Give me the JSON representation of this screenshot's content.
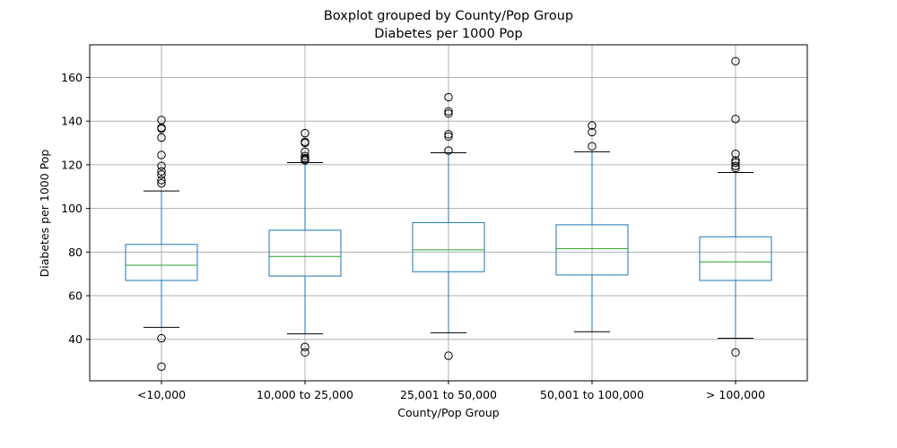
{
  "chart_data": {
    "type": "boxplot",
    "title": "Boxplot grouped by County/Pop Group",
    "subtitle": "Diabetes per 1000 Pop",
    "xlabel": "County/Pop Group",
    "ylabel": "Diabetes per 1000 Pop",
    "ylim": [
      21,
      175
    ],
    "yticks": [
      40,
      60,
      80,
      100,
      120,
      140,
      160
    ],
    "grid": true,
    "colors": {
      "box": "#1f77b4",
      "median": "#2ca02c",
      "cap": "#000000",
      "outlier": "#000000",
      "grid": "#b0b0b0"
    },
    "categories": [
      "<10,000",
      "10,000 to 25,000",
      "25,001 to 50,000",
      "50,001 to 100,000",
      "> 100,000"
    ],
    "boxes": [
      {
        "whislo": 45.5,
        "q1": 67,
        "med": 74,
        "q3": 83.5,
        "whishi": 108,
        "fliers": [
          140.5,
          137,
          136.5,
          132.5,
          124.5,
          119.5,
          117,
          115.5,
          113,
          111.5,
          40.5,
          27.5
        ]
      },
      {
        "whislo": 42.5,
        "q1": 69,
        "med": 78,
        "q3": 90,
        "whishi": 121,
        "fliers": [
          134.5,
          130.5,
          130,
          126,
          124,
          123,
          122.5,
          122,
          36.5,
          34
        ]
      },
      {
        "whislo": 43,
        "q1": 71,
        "med": 81,
        "q3": 93.5,
        "whishi": 125.5,
        "fliers": [
          151,
          144.5,
          143.5,
          134,
          133,
          126.5,
          32.5
        ]
      },
      {
        "whislo": 43.5,
        "q1": 69.5,
        "med": 81.5,
        "q3": 92.5,
        "whishi": 126,
        "fliers": [
          138,
          135,
          128.5
        ]
      },
      {
        "whislo": 40.5,
        "q1": 67,
        "med": 75.5,
        "q3": 87,
        "whishi": 116.5,
        "fliers": [
          167.5,
          141,
          125,
          122,
          121,
          119.5,
          118.5,
          34
        ]
      }
    ]
  }
}
